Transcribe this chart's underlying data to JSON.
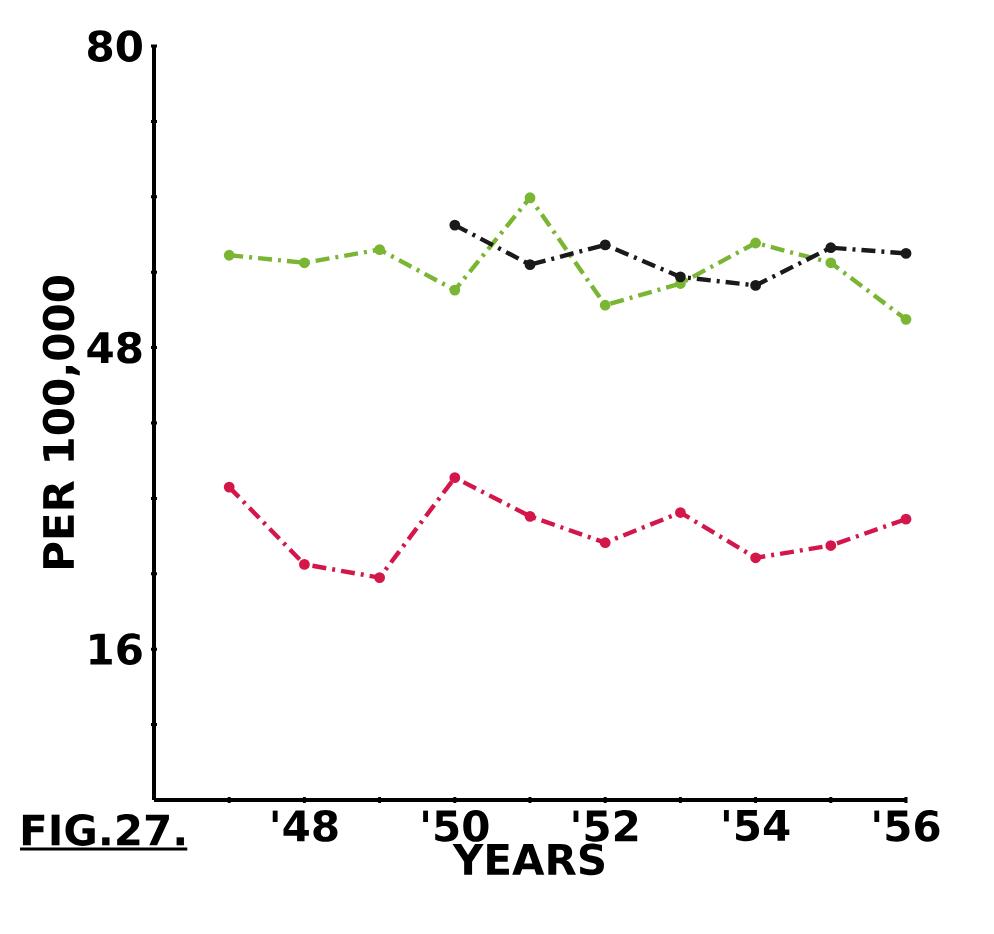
{
  "chart_data": {
    "type": "line",
    "xlabel": "YEARS",
    "ylabel": "PER 100,000",
    "annotations": [
      "FIG.27."
    ],
    "xlim": [
      46,
      56
    ],
    "ylim": [
      0,
      80
    ],
    "xticks": [
      {
        "value": 47,
        "label": null
      },
      {
        "value": 48,
        "label": "'48"
      },
      {
        "value": 49,
        "label": null
      },
      {
        "value": 50,
        "label": "'50"
      },
      {
        "value": 51,
        "label": null
      },
      {
        "value": 52,
        "label": "'52"
      },
      {
        "value": 53,
        "label": null
      },
      {
        "value": 54,
        "label": "'54"
      },
      {
        "value": 55,
        "label": null
      },
      {
        "value": 56,
        "label": "'56"
      }
    ],
    "yticks": [
      {
        "value": 8,
        "label": null
      },
      16,
      {
        "value": 24,
        "label": null
      },
      {
        "value": 32,
        "label": null
      },
      {
        "value": 40,
        "label": null
      },
      48,
      {
        "value": 56,
        "label": null
      },
      {
        "value": 64,
        "label": null
      },
      {
        "value": 72,
        "label": null
      },
      80
    ],
    "x": [
      47,
      48,
      49,
      50,
      51,
      52,
      53,
      54,
      55,
      56
    ],
    "series": [
      {
        "color": "#7ab534",
        "values": [
          57.8,
          57.0,
          58.4,
          54.1,
          63.9,
          52.5,
          54.8,
          59.1,
          57.0,
          51.0
        ]
      },
      {
        "color": "#1a1a1a",
        "values": [
          null,
          null,
          null,
          61.0,
          56.8,
          58.9,
          55.5,
          54.6,
          58.6,
          58.0
        ]
      },
      {
        "color": "#d4174a",
        "values": [
          33.2,
          25.0,
          23.6,
          34.2,
          30.1,
          27.3,
          30.5,
          25.7,
          27.0,
          29.8
        ]
      }
    ],
    "grid": false,
    "marker": "circle",
    "line_style": "dashed"
  }
}
